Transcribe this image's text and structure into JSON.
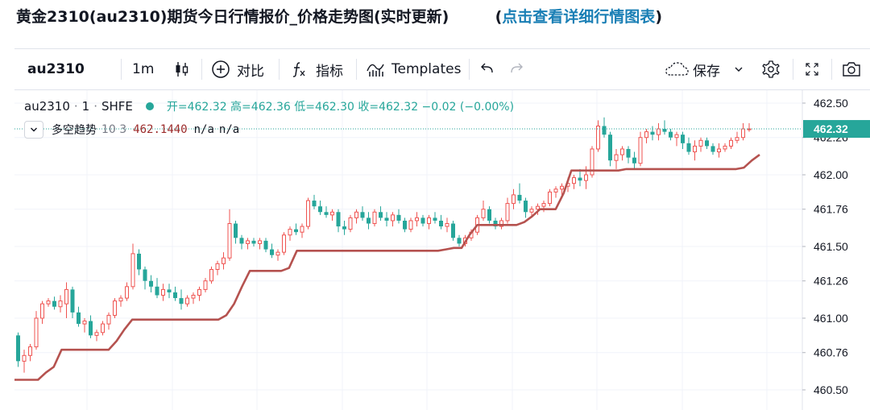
{
  "headline": {
    "title": "黄金2310(au2310)期货今日行情报价_价格走势图(实时更新)",
    "link_open": "(",
    "link_text": "点击查看详细行情图表",
    "link_close": ")"
  },
  "toolbar": {
    "symbol": "au2310",
    "interval": "1m",
    "compare_label": "对比",
    "indicators_label": "指标",
    "templates_label": "Templates",
    "save_label": "保存"
  },
  "legend": {
    "symbol": "au2310",
    "sep1": "·",
    "interval": "1",
    "sep2": "·",
    "exchange": "SHFE",
    "ohlc": "开=462.32 高=462.36 低=462.30 收=462.32 −0.02 (−0.00%)"
  },
  "indicator": {
    "name": "多空趋势",
    "params": "10 3",
    "value": "462.1440",
    "na1": "n/a",
    "na2": "n/a"
  },
  "colors": {
    "up": "#ef5350",
    "down": "#26a69a",
    "indicator": "#b5524f",
    "last_price": "#26a69a",
    "link": "#1a7fb5"
  },
  "chart_data": {
    "type": "candlestick",
    "y_axis_labels": [
      "462.50",
      "462.26",
      "462.00",
      "461.76",
      "461.50",
      "461.26",
      "461.00",
      "460.76",
      "460.50"
    ],
    "ylim": [
      460.46,
      462.58
    ],
    "last_price_label": "462.32",
    "last_price": 462.32,
    "candles": [
      [
        460.88,
        460.9,
        460.66,
        460.7
      ],
      [
        460.7,
        460.78,
        460.62,
        460.74
      ],
      [
        460.74,
        460.82,
        460.7,
        460.8
      ],
      [
        460.8,
        461.05,
        460.78,
        461.0
      ],
      [
        461.0,
        461.12,
        460.96,
        461.1
      ],
      [
        461.1,
        461.14,
        461.08,
        461.12
      ],
      [
        461.12,
        461.15,
        461.06,
        461.08
      ],
      [
        461.08,
        461.16,
        461.04,
        461.12
      ],
      [
        461.1,
        461.25,
        461.0,
        461.2
      ],
      [
        461.2,
        461.22,
        461.0,
        461.04
      ],
      [
        461.04,
        461.08,
        460.94,
        460.96
      ],
      [
        460.96,
        461.0,
        460.9,
        460.98
      ],
      [
        460.98,
        461.02,
        460.86,
        460.88
      ],
      [
        460.88,
        460.92,
        460.84,
        460.9
      ],
      [
        460.9,
        460.98,
        460.88,
        460.96
      ],
      [
        460.96,
        461.04,
        460.92,
        461.02
      ],
      [
        461.02,
        461.14,
        461.0,
        461.12
      ],
      [
        461.12,
        461.16,
        461.08,
        461.14
      ],
      [
        461.14,
        461.25,
        461.12,
        461.22
      ],
      [
        461.22,
        461.52,
        461.2,
        461.45
      ],
      [
        461.45,
        461.48,
        461.3,
        461.34
      ],
      [
        461.34,
        461.36,
        461.2,
        461.26
      ],
      [
        461.26,
        461.3,
        461.18,
        461.22
      ],
      [
        461.22,
        461.28,
        461.14,
        461.16
      ],
      [
        461.16,
        461.24,
        461.12,
        461.2
      ],
      [
        461.2,
        461.24,
        461.14,
        461.18
      ],
      [
        461.18,
        461.22,
        461.12,
        461.14
      ],
      [
        461.14,
        461.2,
        461.06,
        461.1
      ],
      [
        461.1,
        461.16,
        461.08,
        461.14
      ],
      [
        461.14,
        461.18,
        461.1,
        461.16
      ],
      [
        461.16,
        461.22,
        461.12,
        461.2
      ],
      [
        461.2,
        461.28,
        461.18,
        461.26
      ],
      [
        461.26,
        461.36,
        461.24,
        461.34
      ],
      [
        461.34,
        461.4,
        461.3,
        461.38
      ],
      [
        461.38,
        461.46,
        461.34,
        461.42
      ],
      [
        461.42,
        461.76,
        461.4,
        461.66
      ],
      [
        461.66,
        461.68,
        461.52,
        461.56
      ],
      [
        461.56,
        461.58,
        461.48,
        461.52
      ],
      [
        461.52,
        461.56,
        461.48,
        461.54
      ],
      [
        461.54,
        461.56,
        461.5,
        461.52
      ],
      [
        461.52,
        461.56,
        461.48,
        461.54
      ],
      [
        461.54,
        461.56,
        461.46,
        461.48
      ],
      [
        461.48,
        461.52,
        461.42,
        461.44
      ],
      [
        461.44,
        461.48,
        461.4,
        461.46
      ],
      [
        461.46,
        461.6,
        461.44,
        461.58
      ],
      [
        461.58,
        461.64,
        461.54,
        461.62
      ],
      [
        461.62,
        461.66,
        461.58,
        461.6
      ],
      [
        461.6,
        461.66,
        461.56,
        461.64
      ],
      [
        461.64,
        461.84,
        461.62,
        461.82
      ],
      [
        461.82,
        461.86,
        461.76,
        461.78
      ],
      [
        461.78,
        461.82,
        461.72,
        461.74
      ],
      [
        461.74,
        461.78,
        461.7,
        461.72
      ],
      [
        461.72,
        461.76,
        461.68,
        461.74
      ],
      [
        461.74,
        461.76,
        461.6,
        461.64
      ],
      [
        461.64,
        461.68,
        461.58,
        461.62
      ],
      [
        461.62,
        461.72,
        461.6,
        461.7
      ],
      [
        461.7,
        461.76,
        461.66,
        461.74
      ],
      [
        461.74,
        461.78,
        461.68,
        461.7
      ],
      [
        461.7,
        461.74,
        461.62,
        461.66
      ],
      [
        461.66,
        461.76,
        461.64,
        461.74
      ],
      [
        461.74,
        461.78,
        461.68,
        461.7
      ],
      [
        461.7,
        461.74,
        461.64,
        461.68
      ],
      [
        461.68,
        461.74,
        461.64,
        461.72
      ],
      [
        461.72,
        461.76,
        461.66,
        461.68
      ],
      [
        461.68,
        461.7,
        461.6,
        461.62
      ],
      [
        461.62,
        461.7,
        461.6,
        461.68
      ],
      [
        461.68,
        461.74,
        461.64,
        461.7
      ],
      [
        461.7,
        461.72,
        461.64,
        461.66
      ],
      [
        461.66,
        461.72,
        461.62,
        461.7
      ],
      [
        461.7,
        461.74,
        461.66,
        461.68
      ],
      [
        461.68,
        461.72,
        461.62,
        461.64
      ],
      [
        461.64,
        461.7,
        461.6,
        461.66
      ],
      [
        461.66,
        461.68,
        461.54,
        461.56
      ],
      [
        461.56,
        461.58,
        461.5,
        461.52
      ],
      [
        461.52,
        461.58,
        461.5,
        461.56
      ],
      [
        461.56,
        461.62,
        461.54,
        461.6
      ],
      [
        461.6,
        461.72,
        461.58,
        461.7
      ],
      [
        461.7,
        461.82,
        461.68,
        461.76
      ],
      [
        461.76,
        461.78,
        461.66,
        461.68
      ],
      [
        461.68,
        461.7,
        461.62,
        461.64
      ],
      [
        461.64,
        461.7,
        461.62,
        461.68
      ],
      [
        461.68,
        461.84,
        461.66,
        461.8
      ],
      [
        461.8,
        461.9,
        461.76,
        461.86
      ],
      [
        461.86,
        461.94,
        461.8,
        461.82
      ],
      [
        461.82,
        461.84,
        461.7,
        461.74
      ],
      [
        461.74,
        461.78,
        461.7,
        461.76
      ],
      [
        461.76,
        461.8,
        461.72,
        461.78
      ],
      [
        461.78,
        461.82,
        461.74,
        461.8
      ],
      [
        461.8,
        461.9,
        461.78,
        461.88
      ],
      [
        461.88,
        461.92,
        461.84,
        461.9
      ],
      [
        461.9,
        461.94,
        461.86,
        461.92
      ],
      [
        461.92,
        461.98,
        461.88,
        461.94
      ],
      [
        461.94,
        462.0,
        461.9,
        461.98
      ],
      [
        461.98,
        462.04,
        461.92,
        461.96
      ],
      [
        461.96,
        462.06,
        461.9,
        462.0
      ],
      [
        462.0,
        462.2,
        461.98,
        462.18
      ],
      [
        462.18,
        462.38,
        462.16,
        462.34
      ],
      [
        462.34,
        462.4,
        462.26,
        462.28
      ],
      [
        462.28,
        462.3,
        462.06,
        462.1
      ],
      [
        462.1,
        462.18,
        462.04,
        462.14
      ],
      [
        462.14,
        462.2,
        462.1,
        462.18
      ],
      [
        462.18,
        462.2,
        462.08,
        462.12
      ],
      [
        462.12,
        462.16,
        462.04,
        462.08
      ],
      [
        462.08,
        462.3,
        462.06,
        462.26
      ],
      [
        462.26,
        462.32,
        462.22,
        462.3
      ],
      [
        462.3,
        462.34,
        462.24,
        462.28
      ],
      [
        462.28,
        462.36,
        462.24,
        462.32
      ],
      [
        462.32,
        462.38,
        462.28,
        462.3
      ],
      [
        462.3,
        462.32,
        462.24,
        462.26
      ],
      [
        462.26,
        462.3,
        462.2,
        462.28
      ],
      [
        462.28,
        462.3,
        462.18,
        462.22
      ],
      [
        462.22,
        462.26,
        462.14,
        462.16
      ],
      [
        462.16,
        462.24,
        462.1,
        462.2
      ],
      [
        462.2,
        462.26,
        462.16,
        462.24
      ],
      [
        462.24,
        462.26,
        462.18,
        462.2
      ],
      [
        462.2,
        462.22,
        462.14,
        462.16
      ],
      [
        462.16,
        462.22,
        462.12,
        462.18
      ],
      [
        462.18,
        462.22,
        462.16,
        462.2
      ],
      [
        462.2,
        462.26,
        462.18,
        462.24
      ],
      [
        462.24,
        462.3,
        462.22,
        462.26
      ],
      [
        462.26,
        462.36,
        462.24,
        462.32
      ],
      [
        462.32,
        462.36,
        462.3,
        462.32
      ]
    ],
    "indicator_line": [
      460.57,
      460.57,
      460.57,
      460.57,
      460.62,
      460.66,
      460.78,
      460.78,
      460.78,
      460.78,
      460.78,
      460.78,
      460.78,
      460.84,
      460.92,
      460.99,
      460.99,
      460.99,
      460.99,
      460.99,
      460.99,
      460.99,
      460.99,
      460.99,
      460.99,
      460.99,
      460.99,
      461.02,
      461.1,
      461.22,
      461.33,
      461.33,
      461.33,
      461.33,
      461.33,
      461.35,
      461.47,
      461.47,
      461.47,
      461.47,
      461.47,
      461.47,
      461.47,
      461.47,
      461.47,
      461.47,
      461.47,
      461.47,
      461.47,
      461.47,
      461.47,
      461.47,
      461.47,
      461.47,
      461.47,
      461.48,
      461.49,
      461.49,
      461.58,
      461.65,
      461.65,
      461.65,
      461.65,
      461.65,
      461.65,
      461.67,
      461.71,
      461.76,
      461.76,
      461.76,
      461.87,
      462.03,
      462.03,
      462.03,
      462.03,
      462.03,
      462.03,
      462.03,
      462.04,
      462.04,
      462.04,
      462.04,
      462.04,
      462.04,
      462.04,
      462.04,
      462.04,
      462.04,
      462.04,
      462.04,
      462.04,
      462.04,
      462.04,
      462.05,
      462.1,
      462.14
    ]
  }
}
